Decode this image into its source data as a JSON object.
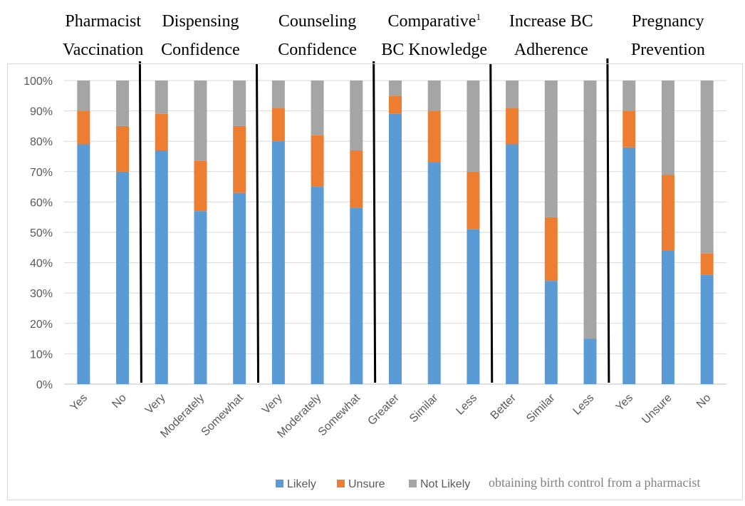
{
  "chart_data": {
    "type": "bar",
    "stacked": true,
    "ylim": [
      0,
      100
    ],
    "yticks": [
      "0%",
      "10%",
      "20%",
      "30%",
      "40%",
      "50%",
      "60%",
      "70%",
      "80%",
      "90%",
      "100%"
    ],
    "grid": true,
    "legend_position": "bottom",
    "groups": [
      {
        "title_line1": "Pharmacist",
        "title_line2": "Vaccination",
        "sup": "",
        "categories": [
          "Yes",
          "No"
        ]
      },
      {
        "title_line1": "Dispensing",
        "title_line2": "Confidence",
        "sup": "",
        "categories": [
          "Very",
          "Moderately",
          "Somewhat"
        ]
      },
      {
        "title_line1": "Counseling",
        "title_line2": "Confidence",
        "sup": "",
        "categories": [
          "Very",
          "Moderately",
          "Somewhat"
        ]
      },
      {
        "title_line1": "Comparative",
        "title_line2": "BC Knowledge",
        "sup": "1",
        "categories": [
          "Greater",
          "Similar",
          "Less"
        ]
      },
      {
        "title_line1": "Increase BC",
        "title_line2": "Adherence",
        "sup": "",
        "categories": [
          "Better",
          "Similar",
          "Less"
        ]
      },
      {
        "title_line1": "Pregnancy",
        "title_line2": "Prevention",
        "sup": "",
        "categories": [
          "Yes",
          "Unsure",
          "No"
        ]
      }
    ],
    "categories": [
      "Yes",
      "No",
      "Very",
      "Moderately",
      "Somewhat",
      "Very",
      "Moderately",
      "Somewhat",
      "Greater",
      "Similar",
      "Less",
      "Better",
      "Similar",
      "Less",
      "Yes",
      "Unsure",
      "No"
    ],
    "series": [
      {
        "name": "Likely",
        "color": "#5b9bd5",
        "values": [
          79,
          70,
          77,
          57,
          63,
          80,
          65,
          58,
          89,
          73,
          51,
          79,
          34,
          15,
          78,
          44,
          36
        ]
      },
      {
        "name": "Unsure",
        "color": "#ed7d31",
        "values": [
          11,
          15,
          12,
          16.5,
          22,
          11,
          17,
          19,
          6,
          17,
          19,
          12,
          21,
          0,
          12,
          25,
          7
        ]
      },
      {
        "name": "Not Likely",
        "color": "#a5a5a5",
        "values": [
          10,
          15,
          11,
          26.5,
          15,
          9,
          18,
          23,
          5,
          10,
          30,
          9,
          45,
          85,
          10,
          31,
          57
        ]
      }
    ],
    "note": "obtaining birth control from a pharmacist"
  }
}
